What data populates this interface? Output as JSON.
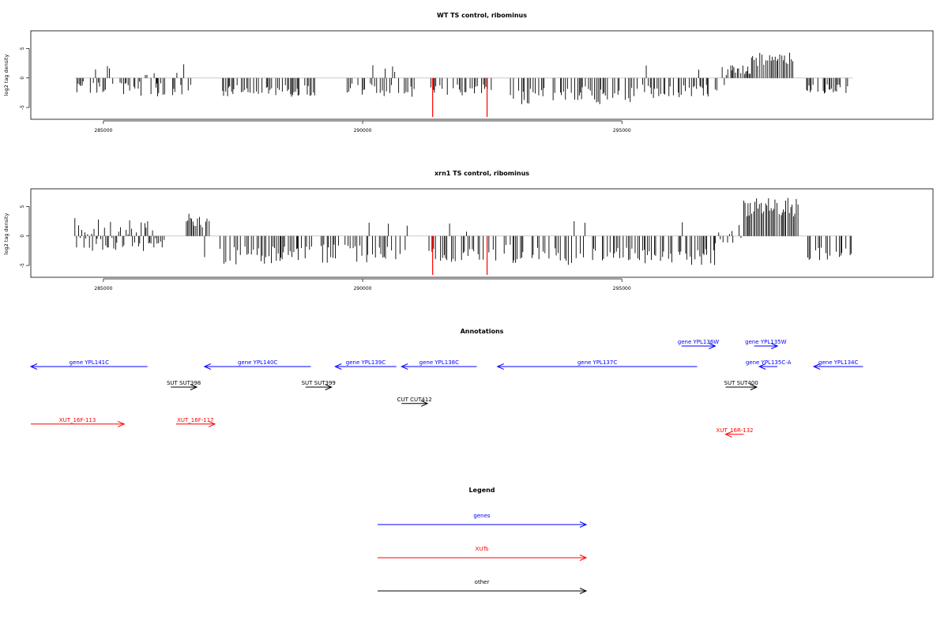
{
  "colors": {
    "gene": "#0000ff",
    "xut": "#ff0000",
    "other": "#000000",
    "highlight": "#ff0000",
    "baseline": "#bbbbbb"
  },
  "chart_data": [
    {
      "type": "bar",
      "title": "WT TS control, ribominus",
      "xlabel": "",
      "ylabel": "log2 tag density",
      "xlim": [
        283600,
        301000
      ],
      "ylim": [
        -7,
        8
      ],
      "xticks": [
        285000,
        290000,
        295000
      ],
      "yticks": [
        5,
        0,
        -5
      ],
      "highlight_x": [
        291350,
        292400
      ],
      "highlight_value": -6.6,
      "profile": [
        {
          "start": 284450,
          "end": 286700,
          "mean": -1.6,
          "spread": 1.3,
          "up_frac": 0.12
        },
        {
          "start": 287300,
          "end": 289200,
          "mean": -2.0,
          "spread": 1.0,
          "up_frac": 0.0
        },
        {
          "start": 289700,
          "end": 291000,
          "mean": -1.8,
          "spread": 1.2,
          "up_frac": 0.08
        },
        {
          "start": 291300,
          "end": 292500,
          "mean": -1.8,
          "spread": 1.0,
          "up_frac": 0.0
        },
        {
          "start": 292850,
          "end": 295300,
          "mean": -2.6,
          "spread": 1.6,
          "up_frac": 0.0
        },
        {
          "start": 295400,
          "end": 296700,
          "mean": -2.0,
          "spread": 1.3,
          "up_frac": 0.05
        },
        {
          "start": 296800,
          "end": 297100,
          "mean": -1.5,
          "spread": 1.0,
          "up_frac": 0.25
        },
        {
          "start": 297100,
          "end": 297500,
          "mean": 1.2,
          "spread": 0.8,
          "up_frac": 1.0
        },
        {
          "start": 297500,
          "end": 298300,
          "mean": 3.0,
          "spread": 1.2,
          "up_frac": 1.0
        },
        {
          "start": 298500,
          "end": 299400,
          "mean": -1.8,
          "spread": 0.9,
          "up_frac": 0.0
        }
      ]
    },
    {
      "type": "bar",
      "title": "xrn1 TS control, ribominus",
      "xlabel": "",
      "ylabel": "log2 tag density",
      "xlim": [
        283600,
        301000
      ],
      "ylim": [
        -7,
        8
      ],
      "xticks": [
        285000,
        290000,
        295000
      ],
      "yticks": [
        5,
        0,
        -5
      ],
      "highlight_x": [
        291350,
        292400
      ],
      "highlight_value": -6.6,
      "profile": [
        {
          "start": 284450,
          "end": 286200,
          "mean": 0.0,
          "spread": 2.6,
          "up_frac": 0.5
        },
        {
          "start": 286600,
          "end": 287050,
          "mean": 2.5,
          "spread": 1.3,
          "up_frac": 0.85
        },
        {
          "start": 287250,
          "end": 289200,
          "mean": -3.0,
          "spread": 1.5,
          "up_frac": 0.06
        },
        {
          "start": 289200,
          "end": 290900,
          "mean": -2.6,
          "spread": 1.7,
          "up_frac": 0.1
        },
        {
          "start": 291250,
          "end": 292900,
          "mean": -2.6,
          "spread": 1.5,
          "up_frac": 0.05
        },
        {
          "start": 292900,
          "end": 296800,
          "mean": -3.2,
          "spread": 1.5,
          "up_frac": 0.04
        },
        {
          "start": 296800,
          "end": 297300,
          "mean": -0.5,
          "spread": 1.8,
          "up_frac": 0.45
        },
        {
          "start": 297350,
          "end": 298400,
          "mean": 4.6,
          "spread": 1.6,
          "up_frac": 1.0
        },
        {
          "start": 298500,
          "end": 299450,
          "mean": -2.8,
          "spread": 1.2,
          "up_frac": 0.0
        }
      ]
    }
  ],
  "annotations": {
    "title": "Annotations",
    "features": [
      {
        "label": "gene YPL141C",
        "type": "gene",
        "start": 283600,
        "end": 285850,
        "strand": "-",
        "row": 0
      },
      {
        "label": "gene YPL140C",
        "type": "gene",
        "start": 286950,
        "end": 289000,
        "strand": "-",
        "row": 0
      },
      {
        "label": "gene YPL139C",
        "type": "gene",
        "start": 289470,
        "end": 290650,
        "strand": "-",
        "row": 0
      },
      {
        "label": "gene YPL138C",
        "type": "gene",
        "start": 290750,
        "end": 292200,
        "strand": "-",
        "row": 0
      },
      {
        "label": "gene YPL137C",
        "type": "gene",
        "start": 292600,
        "end": 296450,
        "strand": "-",
        "row": 0
      },
      {
        "label": "gene YPL136W",
        "type": "gene",
        "start": 296150,
        "end": 296800,
        "strand": "+",
        "row": -1
      },
      {
        "label": "gene YPL135W",
        "type": "gene",
        "start": 297550,
        "end": 298000,
        "strand": "+",
        "row": -1
      },
      {
        "label": "gene YPL135C-A",
        "type": "gene",
        "start": 297650,
        "end": 298000,
        "strand": "-",
        "row": 0
      },
      {
        "label": "gene YPL134C",
        "type": "gene",
        "start": 298700,
        "end": 299650,
        "strand": "-",
        "row": 0
      },
      {
        "label": "SUT SUT398",
        "type": "other",
        "start": 286300,
        "end": 286800,
        "strand": "+",
        "row": 1
      },
      {
        "label": "SUT SUT399",
        "type": "other",
        "start": 288900,
        "end": 289400,
        "strand": "+",
        "row": 1
      },
      {
        "label": "CUT CUT412",
        "type": "other",
        "start": 290750,
        "end": 291250,
        "strand": "+",
        "row": 1.8
      },
      {
        "label": "SUT SUT400",
        "type": "other",
        "start": 297000,
        "end": 297600,
        "strand": "+",
        "row": 1
      },
      {
        "label": "XUT_16F-113",
        "type": "xut",
        "start": 283600,
        "end": 285400,
        "strand": "+",
        "row": 2.8
      },
      {
        "label": "XUT_16F-117",
        "type": "xut",
        "start": 286400,
        "end": 287150,
        "strand": "+",
        "row": 2.8
      },
      {
        "label": "XUT_16R-132",
        "type": "xut",
        "start": 297000,
        "end": 297350,
        "strand": "-",
        "row": 3.3
      }
    ]
  },
  "legend": {
    "title": "Legend",
    "items": [
      {
        "label": "genes",
        "type": "gene"
      },
      {
        "label": "XUTs",
        "type": "xut"
      },
      {
        "label": "other",
        "type": "other"
      }
    ]
  }
}
